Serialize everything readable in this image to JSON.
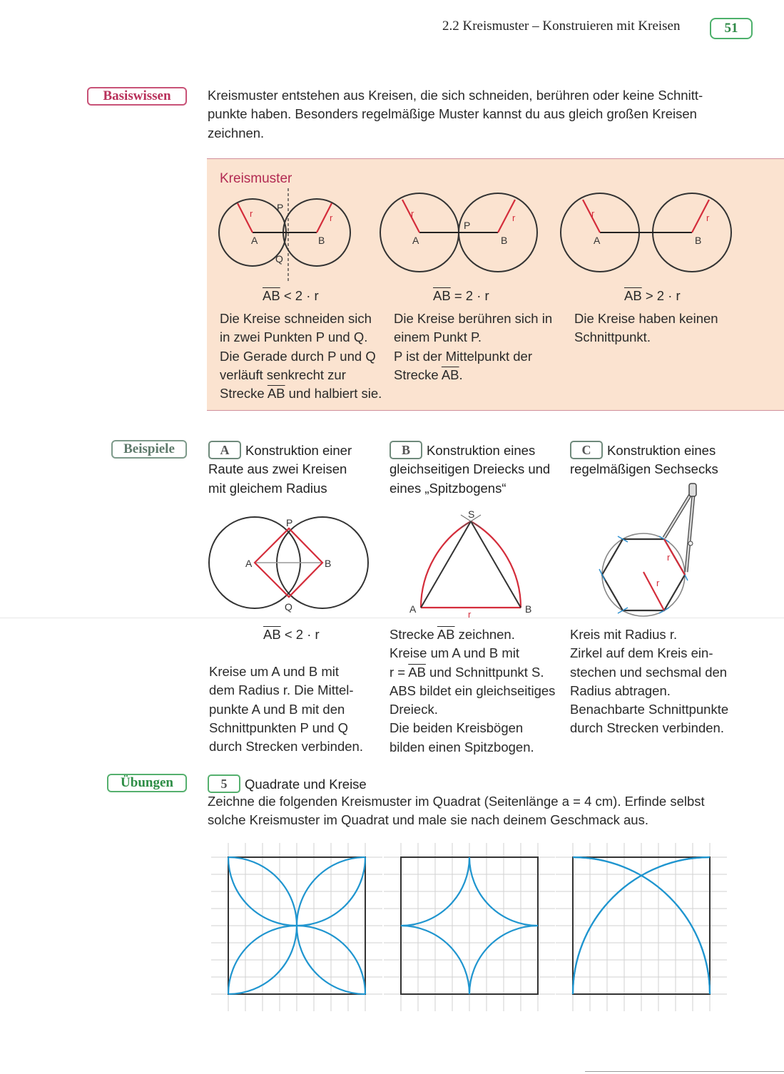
{
  "header": {
    "section_title": "2.2  Kreismuster – Konstruieren mit Kreisen",
    "page_number": "51"
  },
  "basiswissen": {
    "tag": "Basiswissen",
    "intro_lines": [
      "Kreismuster entstehen aus Kreisen, die sich schneiden, berühren oder keine Schnitt-",
      "punkte haben. Besonders regelmäßige Muster kannst du aus gleich großen Kreisen",
      "zeichnen."
    ],
    "box_title": "Kreismuster",
    "cases": [
      {
        "formula_ab": "AB",
        "formula_rest": " < 2 · r",
        "lines": [
          "Die Kreise schneiden sich",
          "in zwei Punkten P und Q.",
          "Die Gerade durch P und Q",
          "verläuft senkrecht zur"
        ],
        "last_pre": "Strecke ",
        "last_ab": "AB",
        "last_post": " und halbiert sie.",
        "labels": {
          "a": "A",
          "b": "B",
          "p": "P",
          "q": "Q",
          "r": "r"
        }
      },
      {
        "formula_ab": "AB",
        "formula_rest": " = 2 · r",
        "lines": [
          "Die Kreise berühren sich in",
          "einem Punkt P.",
          "P ist der Mittelpunkt der"
        ],
        "last_pre": "Strecke ",
        "last_ab": "AB",
        "last_post": ".",
        "labels": {
          "a": "A",
          "b": "B",
          "p": "P",
          "r": "r"
        }
      },
      {
        "formula_ab": "AB",
        "formula_rest": " > 2 · r",
        "lines": [
          "Die Kreise haben keinen",
          "Schnittpunkt."
        ],
        "labels": {
          "a": "A",
          "b": "B",
          "r": "r"
        }
      }
    ]
  },
  "beispiele": {
    "tag": "Beispiele",
    "examples": [
      {
        "letter": "A",
        "title_lines": [
          "Konstruktion einer",
          "Raute aus zwei Kreisen",
          "mit gleichem Radius"
        ],
        "formula_ab": "AB",
        "formula_rest": " < 2 · r",
        "desc": [
          "Kreise um A und B mit",
          "dem Radius r. Die Mittel-",
          "punkte A und B mit den",
          "Schnittpunkten P und Q",
          "durch Strecken verbinden."
        ],
        "labels": {
          "a": "A",
          "b": "B",
          "p": "P",
          "q": "Q"
        }
      },
      {
        "letter": "B",
        "title_lines": [
          "Konstruktion eines",
          "gleichseitigen Dreiecks und",
          "eines „Spitzbogens“"
        ],
        "desc_1_pre": "Strecke ",
        "desc_1_ab": "AB",
        "desc_1_post": " zeichnen.",
        "desc_2": "Kreise um A und B mit",
        "desc_3_pre": "r = ",
        "desc_3_ab": "AB",
        "desc_3_post": " und Schnittpunkt S.",
        "desc_rest": [
          "ABS bildet ein gleichseitiges",
          "Dreieck.",
          "Die beiden Kreisbögen",
          "bilden einen Spitzbogen."
        ],
        "labels": {
          "a": "A",
          "b": "B",
          "s": "S",
          "r": "r"
        }
      },
      {
        "letter": "C",
        "title_lines": [
          "Konstruktion eines",
          "regelmäßigen Sechsecks"
        ],
        "desc": [
          "Kreis mit Radius r.",
          "Zirkel auf dem Kreis ein-",
          "stechen und sechsmal den",
          "Radius abtragen.",
          "Benachbarte Schnittpunkte",
          "durch Strecken verbinden."
        ],
        "labels": {
          "r1": "r",
          "r2": "r"
        }
      }
    ]
  },
  "uebungen": {
    "tag": "Übungen",
    "exercise_number": "5",
    "exercise_title": "Quadrate und Kreise",
    "instruction_lines": [
      "Zeichne die folgenden Kreismuster im Quadrat (Seitenlänge a = 4 cm). Erfinde selbst",
      "solche Kreismuster im Quadrat und male sie nach deinem Geschmack aus."
    ]
  },
  "colors": {
    "accent_red": "#d42d3b",
    "pattern_blue": "#1f95cf",
    "basis_pink": "#b8305a",
    "uebung_green": "#2d8d45",
    "box_beige": "#fbe3d0"
  }
}
